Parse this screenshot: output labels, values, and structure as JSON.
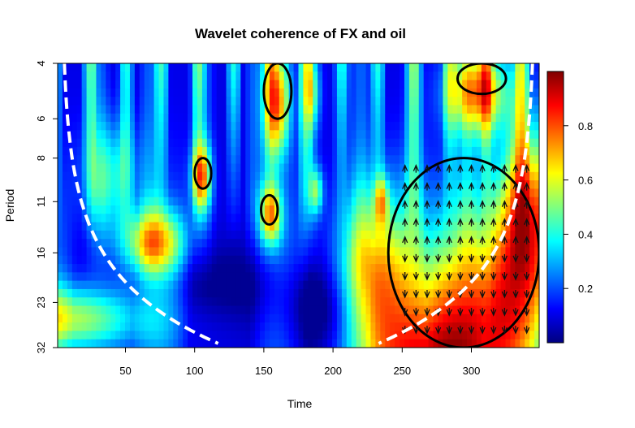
{
  "chart_data": {
    "type": "heatmap",
    "title": "Wavelet coherence of FX and oil",
    "xlabel": "Time",
    "ylabel": "Period",
    "x_ticks": [
      50,
      100,
      150,
      200,
      250,
      300
    ],
    "y_ticks": [
      "4",
      "6",
      "8",
      "11",
      "16",
      "23",
      "32"
    ],
    "y_scale": "log2",
    "xlim": [
      1,
      349
    ],
    "ylim": [
      4,
      32
    ],
    "colorbar": {
      "ticks": [
        "0.2",
        "0.4",
        "0.6",
        "0.8"
      ],
      "range": [
        0,
        1
      ],
      "palette": [
        "#00007F",
        "#0000FF",
        "#007FFF",
        "#00FFFF",
        "#7FFF7F",
        "#FFFF00",
        "#FF7F00",
        "#FF0000",
        "#7F0000"
      ]
    },
    "colors": {
      "cone_of_influence": "#ffffff",
      "significance_contour": "#000000"
    },
    "significant_regions": [
      {
        "name": "main high-coherence region",
        "time_range": [
          240,
          349
        ],
        "period_range": [
          8,
          32
        ],
        "coherence": 0.9
      },
      {
        "name": "period-4 band near t=160",
        "time_range": [
          150,
          170
        ],
        "period_range": [
          4,
          6
        ],
        "coherence": 0.85
      },
      {
        "name": "period-4 band near t=305",
        "time_range": [
          290,
          325
        ],
        "period_range": [
          4,
          5
        ],
        "coherence": 0.8
      },
      {
        "name": "island near t=105",
        "time_range": [
          100,
          112
        ],
        "period_range": [
          8,
          10
        ],
        "coherence": 0.8
      },
      {
        "name": "island near t=155",
        "time_range": [
          148,
          160
        ],
        "period_range": [
          10.5,
          13
        ],
        "coherence": 0.8
      }
    ]
  }
}
